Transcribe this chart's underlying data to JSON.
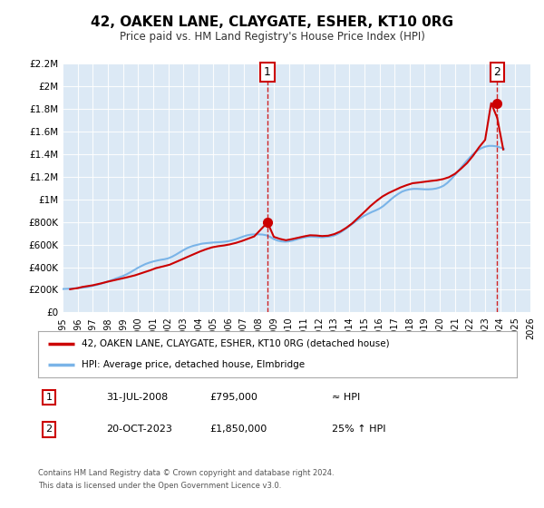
{
  "title": "42, OAKEN LANE, CLAYGATE, ESHER, KT10 0RG",
  "subtitle": "Price paid vs. HM Land Registry's House Price Index (HPI)",
  "bg_color": "#dce9f5",
  "line_color_hpi": "#7ab4e8",
  "line_color_price": "#cc0000",
  "marker_color": "#cc0000",
  "vline_color": "#cc0000",
  "ylabel_ticks": [
    "£0",
    "£200K",
    "£400K",
    "£600K",
    "£800K",
    "£1M",
    "£1.2M",
    "£1.4M",
    "£1.6M",
    "£1.8M",
    "£2M",
    "£2.2M"
  ],
  "ytick_values": [
    0,
    200000,
    400000,
    600000,
    800000,
    1000000,
    1200000,
    1400000,
    1600000,
    1800000,
    2000000,
    2200000
  ],
  "xlim": [
    1995,
    2026
  ],
  "ylim": [
    0,
    2200000
  ],
  "xticks": [
    1995,
    1996,
    1997,
    1998,
    1999,
    2000,
    2001,
    2002,
    2003,
    2004,
    2005,
    2006,
    2007,
    2008,
    2009,
    2010,
    2011,
    2012,
    2013,
    2014,
    2015,
    2016,
    2017,
    2018,
    2019,
    2020,
    2021,
    2022,
    2023,
    2024,
    2025,
    2026
  ],
  "sale1_x": 2008.58,
  "sale1_y": 795000,
  "sale1_label": "1",
  "sale2_x": 2023.8,
  "sale2_y": 1850000,
  "sale2_label": "2",
  "legend_line1": "42, OAKEN LANE, CLAYGATE, ESHER, KT10 0RG (detached house)",
  "legend_line2": "HPI: Average price, detached house, Elmbridge",
  "table_row1": [
    "1",
    "31-JUL-2008",
    "£795,000",
    "≈ HPI"
  ],
  "table_row2": [
    "2",
    "20-OCT-2023",
    "£1,850,000",
    "25% ↑ HPI"
  ],
  "footer1": "Contains HM Land Registry data © Crown copyright and database right 2024.",
  "footer2": "This data is licensed under the Open Government Licence v3.0.",
  "hpi_data_x": [
    1995.0,
    1995.25,
    1995.5,
    1995.75,
    1996.0,
    1996.25,
    1996.5,
    1996.75,
    1997.0,
    1997.25,
    1997.5,
    1997.75,
    1998.0,
    1998.25,
    1998.5,
    1998.75,
    1999.0,
    1999.25,
    1999.5,
    1999.75,
    2000.0,
    2000.25,
    2000.5,
    2000.75,
    2001.0,
    2001.25,
    2001.5,
    2001.75,
    2002.0,
    2002.25,
    2002.5,
    2002.75,
    2003.0,
    2003.25,
    2003.5,
    2003.75,
    2004.0,
    2004.25,
    2004.5,
    2004.75,
    2005.0,
    2005.25,
    2005.5,
    2005.75,
    2006.0,
    2006.25,
    2006.5,
    2006.75,
    2007.0,
    2007.25,
    2007.5,
    2007.75,
    2008.0,
    2008.25,
    2008.5,
    2008.75,
    2009.0,
    2009.25,
    2009.5,
    2009.75,
    2010.0,
    2010.25,
    2010.5,
    2010.75,
    2011.0,
    2011.25,
    2011.5,
    2011.75,
    2012.0,
    2012.25,
    2012.5,
    2012.75,
    2013.0,
    2013.25,
    2013.5,
    2013.75,
    2014.0,
    2014.25,
    2014.5,
    2014.75,
    2015.0,
    2015.25,
    2015.5,
    2015.75,
    2016.0,
    2016.25,
    2016.5,
    2016.75,
    2017.0,
    2017.25,
    2017.5,
    2017.75,
    2018.0,
    2018.25,
    2018.5,
    2018.75,
    2019.0,
    2019.25,
    2019.5,
    2019.75,
    2020.0,
    2020.25,
    2020.5,
    2020.75,
    2021.0,
    2021.25,
    2021.5,
    2021.75,
    2022.0,
    2022.25,
    2022.5,
    2022.75,
    2023.0,
    2023.25,
    2023.5,
    2023.75,
    2024.0,
    2024.25
  ],
  "hpi_data_y": [
    207000,
    208000,
    210000,
    212000,
    215000,
    218000,
    222000,
    228000,
    235000,
    243000,
    252000,
    262000,
    273000,
    285000,
    298000,
    310000,
    322000,
    337000,
    355000,
    375000,
    395000,
    412000,
    428000,
    440000,
    450000,
    458000,
    465000,
    470000,
    478000,
    492000,
    510000,
    530000,
    550000,
    568000,
    582000,
    592000,
    600000,
    608000,
    612000,
    615000,
    618000,
    620000,
    622000,
    625000,
    630000,
    638000,
    648000,
    660000,
    672000,
    682000,
    688000,
    690000,
    690000,
    688000,
    682000,
    668000,
    648000,
    635000,
    628000,
    625000,
    628000,
    635000,
    645000,
    655000,
    662000,
    668000,
    670000,
    668000,
    665000,
    665000,
    668000,
    672000,
    680000,
    695000,
    715000,
    738000,
    762000,
    788000,
    812000,
    835000,
    855000,
    872000,
    888000,
    902000,
    918000,
    940000,
    968000,
    998000,
    1025000,
    1048000,
    1068000,
    1080000,
    1088000,
    1092000,
    1092000,
    1090000,
    1088000,
    1088000,
    1090000,
    1095000,
    1105000,
    1120000,
    1145000,
    1178000,
    1215000,
    1255000,
    1295000,
    1335000,
    1372000,
    1405000,
    1432000,
    1452000,
    1465000,
    1472000,
    1472000,
    1468000,
    1458000,
    1445000
  ],
  "price_data_x": [
    1995.5,
    1996.0,
    1996.3,
    1997.0,
    1997.5,
    1998.0,
    1998.6,
    1999.2,
    1999.8,
    2000.3,
    2000.8,
    2001.2,
    2001.7,
    2002.1,
    2002.5,
    2002.9,
    2003.3,
    2003.7,
    2004.1,
    2004.5,
    2004.9,
    2005.3,
    2005.7,
    2006.1,
    2006.5,
    2006.9,
    2007.3,
    2007.7,
    2008.58,
    2009.0,
    2009.4,
    2009.8,
    2010.2,
    2010.6,
    2011.0,
    2011.4,
    2011.8,
    2012.2,
    2012.6,
    2013.0,
    2013.4,
    2013.8,
    2014.2,
    2014.6,
    2015.0,
    2015.4,
    2015.8,
    2016.2,
    2016.6,
    2017.0,
    2017.4,
    2017.8,
    2018.2,
    2018.6,
    2019.0,
    2019.4,
    2019.8,
    2020.2,
    2020.6,
    2021.0,
    2021.4,
    2021.8,
    2022.2,
    2022.6,
    2023.0,
    2023.4,
    2023.8,
    2024.2
  ],
  "price_data_y": [
    205000,
    215000,
    225000,
    240000,
    255000,
    272000,
    290000,
    308000,
    328000,
    350000,
    372000,
    392000,
    408000,
    422000,
    445000,
    468000,
    492000,
    515000,
    538000,
    558000,
    575000,
    585000,
    592000,
    602000,
    615000,
    632000,
    652000,
    672000,
    795000,
    668000,
    650000,
    638000,
    648000,
    660000,
    672000,
    682000,
    680000,
    675000,
    678000,
    692000,
    715000,
    748000,
    788000,
    838000,
    888000,
    940000,
    985000,
    1025000,
    1055000,
    1080000,
    1105000,
    1125000,
    1142000,
    1148000,
    1155000,
    1162000,
    1168000,
    1178000,
    1195000,
    1225000,
    1270000,
    1320000,
    1385000,
    1460000,
    1525000,
    1850000,
    1720000,
    1440000
  ]
}
